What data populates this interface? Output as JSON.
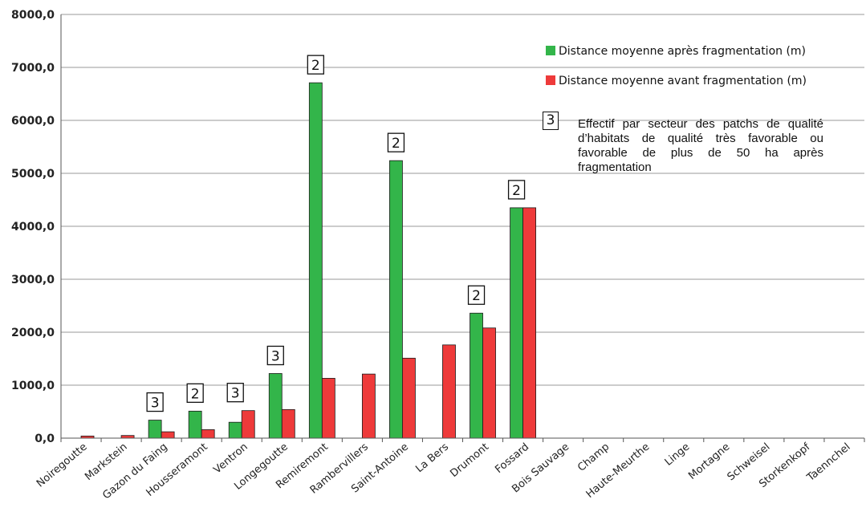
{
  "chart_data": {
    "type": "bar",
    "title": "",
    "xlabel": "",
    "ylabel": "",
    "ylim": [
      0,
      8000
    ],
    "yticks": [
      "0,0",
      "1000,0",
      "2000,0",
      "3000,0",
      "4000,0",
      "5000,0",
      "6000,0",
      "7000,0",
      "8000,0"
    ],
    "ytick_values": [
      0,
      1000,
      2000,
      3000,
      4000,
      5000,
      6000,
      7000,
      8000
    ],
    "grid": true,
    "legend_position": "top-right",
    "categories": [
      "Noiregoutte",
      "Markstein",
      "Gazon du Faing",
      "Housseramont",
      "Ventron",
      "Longegoutte",
      "Remiremont",
      "Rambervillers",
      "Saint-Antoine",
      "La Bers",
      "Drumont",
      "Fossard",
      "Bois Sauvage",
      "Champ",
      "Haute-Meurthe",
      "Linge",
      "Mortagne",
      "Schweisel",
      "Storkenkopf",
      "Taennchel"
    ],
    "series": [
      {
        "name": "Distance moyenne après fragmentation (m)",
        "color": "#33b54a",
        "values": [
          0,
          0,
          340,
          510,
          300,
          1220,
          6710,
          0,
          5240,
          0,
          2360,
          4350,
          0,
          0,
          0,
          0,
          0,
          0,
          0,
          0
        ]
      },
      {
        "name": "Distance moyenne avant fragmentation (m)",
        "color": "#ee3a3a",
        "values": [
          40,
          50,
          120,
          160,
          520,
          540,
          1130,
          1210,
          1510,
          1760,
          2080,
          4350,
          0,
          0,
          0,
          0,
          0,
          0,
          0,
          0
        ]
      }
    ],
    "annotations": [
      {
        "category": "Gazon du Faing",
        "label": "3"
      },
      {
        "category": "Housseramont",
        "label": "2"
      },
      {
        "category": "Ventron",
        "label": "3"
      },
      {
        "category": "Longegoutte",
        "label": "3"
      },
      {
        "category": "Remiremont",
        "label": "2"
      },
      {
        "category": "Saint-Antoine",
        "label": "2"
      },
      {
        "category": "Drumont",
        "label": "2"
      },
      {
        "category": "Fossard",
        "label": "2"
      }
    ],
    "note_marker": "3",
    "note_text": "Effectif par secteur des patchs de qualité d’habitats de qualité très favorable ou favorable de plus de 50 ha après fragmentation"
  }
}
